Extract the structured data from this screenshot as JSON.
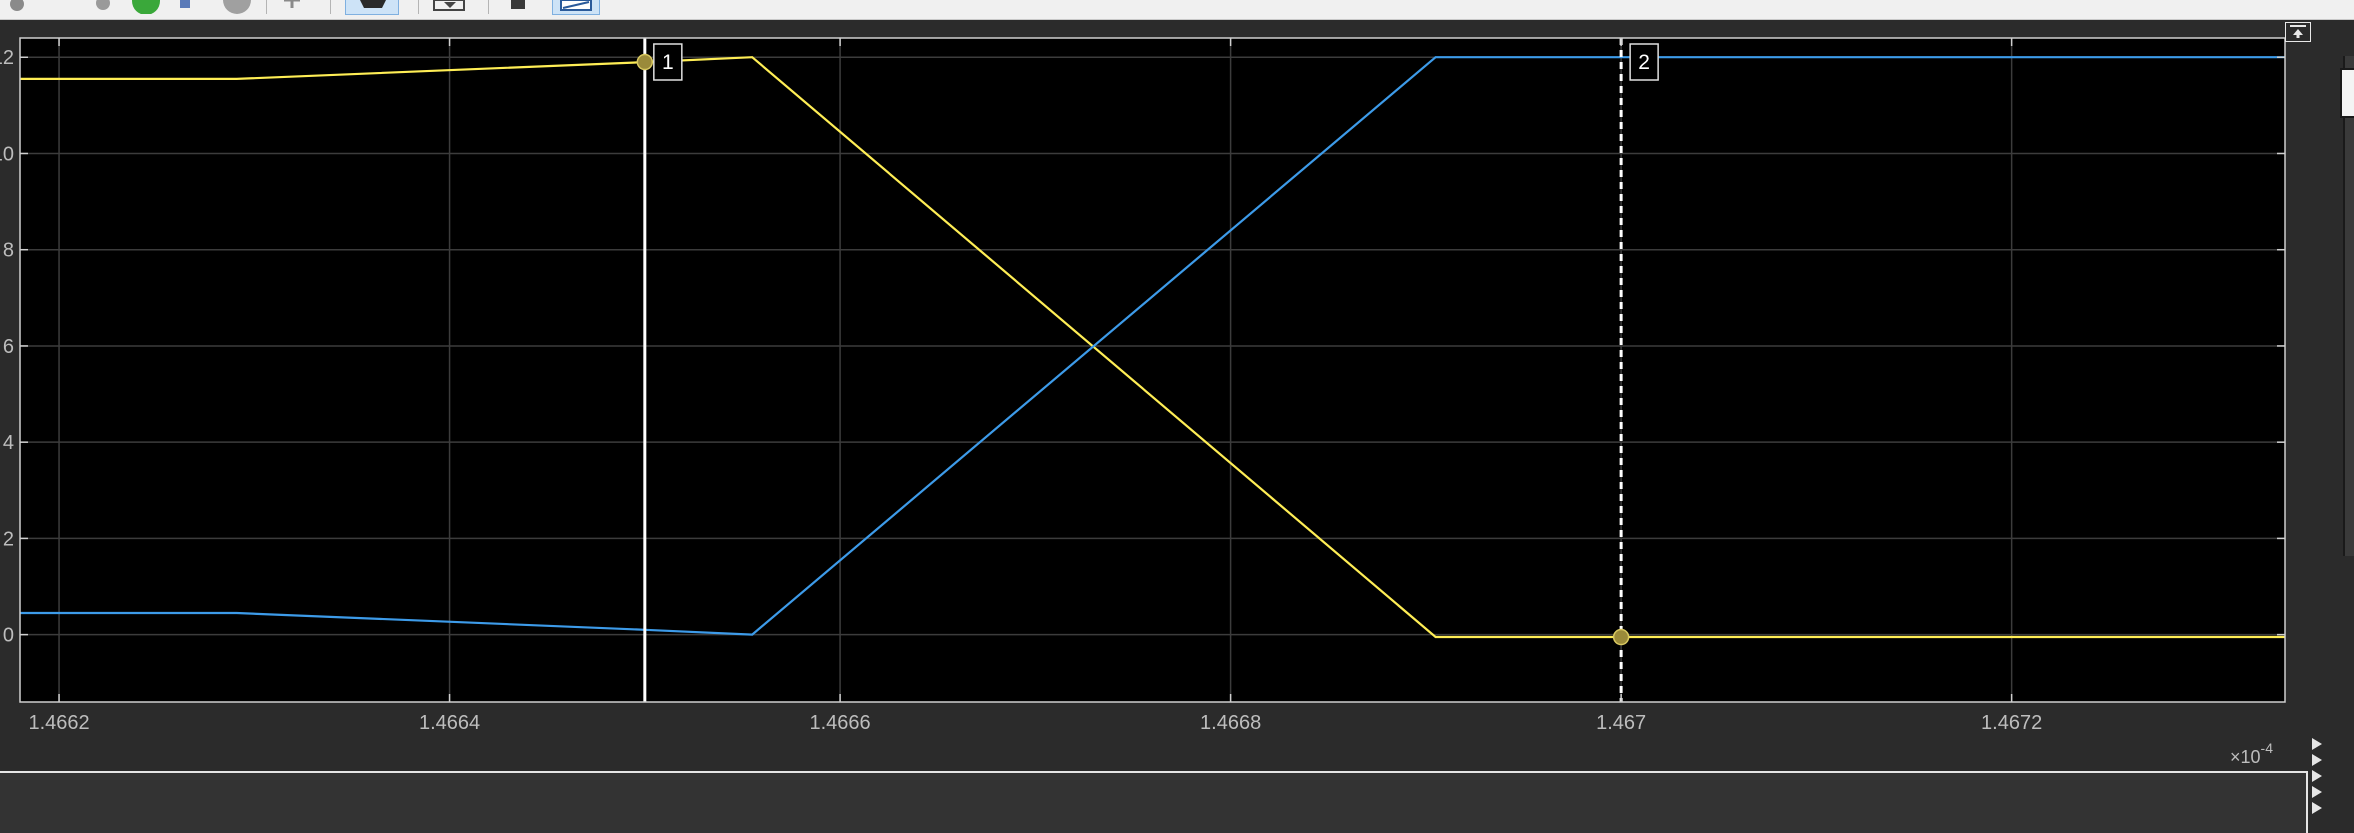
{
  "chart_data": {
    "type": "line",
    "title": "",
    "xlabel": "",
    "ylabel": "",
    "x_exponent_label": "×10",
    "x_exponent_power": "-4",
    "xlim": [
      1.46618,
      1.46734
    ],
    "ylim": [
      -1.4,
      12.4
    ],
    "x_ticks": [
      1.4662,
      1.4664,
      1.4666,
      1.4668,
      1.467,
      1.4672
    ],
    "x_tick_labels": [
      "1.4662",
      "1.4664",
      "1.4666",
      "1.4668",
      "1.467",
      "1.4672"
    ],
    "y_ticks": [
      0,
      2,
      4,
      6,
      8,
      10,
      12
    ],
    "y_tick_labels": [
      "0",
      "2",
      "4",
      "6",
      "8",
      "10",
      "12"
    ],
    "grid": true,
    "background_color": "#000000",
    "series": [
      {
        "color": "#ffee55",
        "x": [
          1.46618,
          1.466291,
          1.4665,
          1.466555,
          1.466905,
          1.46734
        ],
        "y": [
          11.55,
          11.55,
          11.9,
          12.0,
          -0.05,
          -0.05
        ]
      },
      {
        "color": "#3d9be9",
        "x": [
          1.46618,
          1.466291,
          1.4665,
          1.466555,
          1.466905,
          1.46734
        ],
        "y": [
          0.45,
          0.45,
          0.1,
          0.0,
          12.0,
          12.0
        ]
      }
    ],
    "cursors": [
      {
        "label": "1",
        "x": 1.4665,
        "y": 11.9,
        "style": "solid"
      },
      {
        "label": "2",
        "x": 1.467,
        "y": -0.05,
        "style": "dashed"
      }
    ]
  },
  "cursor_marker_color": "#9a8a3a",
  "icons": {
    "undock": "undock-icon",
    "toolbar": [
      "settings-icon",
      "run-icon",
      "step-icon",
      "stop-icon",
      "pan-icon",
      "zoom-icon",
      "save-icon",
      "print-icon",
      "cursor-measure-icon"
    ]
  }
}
